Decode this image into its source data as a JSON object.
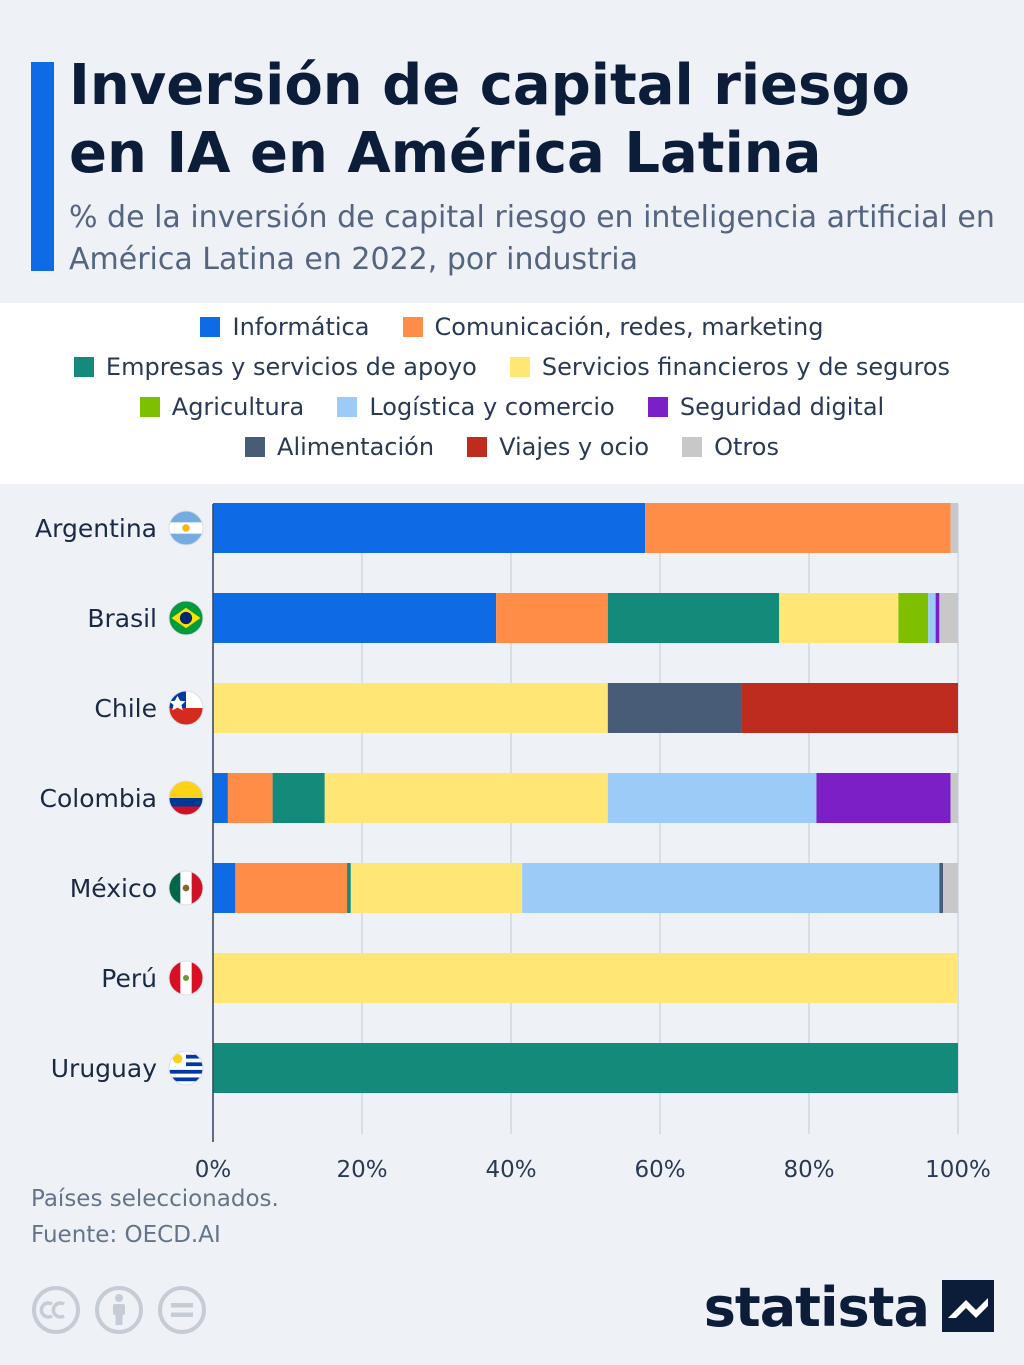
{
  "header": {
    "title": "Inversión de capital riesgo en IA en América Latina",
    "subtitle": "% de la inversión de capital riesgo en inteligencia artificial en América Latina en 2022, por industria"
  },
  "footer": {
    "note": "Países seleccionados.",
    "source": "Fuente: OECD.AI",
    "brand": "statista"
  },
  "chart_data": {
    "type": "bar",
    "orientation": "horizontal",
    "stacked": true,
    "categories": [
      "Argentina",
      "Brasil",
      "Chile",
      "Colombia",
      "México",
      "Perú",
      "Uruguay"
    ],
    "flag_icons": [
      "argentina-flag-icon",
      "brazil-flag-icon",
      "chile-flag-icon",
      "colombia-flag-icon",
      "mexico-flag-icon",
      "peru-flag-icon",
      "uruguay-flag-icon"
    ],
    "series": [
      {
        "name": "Informática",
        "color": "#0f6ae6",
        "values": [
          58,
          38,
          0,
          2,
          3,
          0,
          0
        ]
      },
      {
        "name": "Comunicación, redes, marketing",
        "color": "#ff8c47",
        "values": [
          41,
          15,
          0,
          6,
          15,
          0,
          0
        ]
      },
      {
        "name": "Empresas y servicios de apoyo",
        "color": "#138a7a",
        "values": [
          0,
          23,
          0,
          7,
          0.5,
          0,
          100
        ]
      },
      {
        "name": "Servicios financieros y de seguros",
        "color": "#ffe675",
        "values": [
          0,
          16,
          53,
          38,
          23,
          100,
          0
        ]
      },
      {
        "name": "Agricultura",
        "color": "#7ec000",
        "values": [
          0,
          4,
          0,
          0,
          0,
          0,
          0
        ]
      },
      {
        "name": "Logística y comercio",
        "color": "#9dcbf7",
        "values": [
          0,
          1,
          0,
          28,
          56,
          0,
          0
        ]
      },
      {
        "name": "Seguridad digital",
        "color": "#7d1fc7",
        "values": [
          0,
          0.5,
          0,
          18,
          0,
          0,
          0
        ]
      },
      {
        "name": "Alimentación",
        "color": "#485b77",
        "values": [
          0,
          0,
          18,
          0,
          0.5,
          0,
          0
        ]
      },
      {
        "name": "Viajes y ocio",
        "color": "#be2b1f",
        "values": [
          0,
          0,
          29,
          0,
          0,
          0,
          0
        ]
      },
      {
        "name": "Otros",
        "color": "#c8c8c8",
        "values": [
          1,
          2.5,
          0,
          1,
          2,
          0,
          0
        ]
      }
    ],
    "xlim": [
      0,
      100
    ],
    "x_ticks": [
      "0%",
      "20%",
      "40%",
      "60%",
      "80%",
      "100%"
    ],
    "grid": "vertical",
    "legend_placement": "top"
  }
}
